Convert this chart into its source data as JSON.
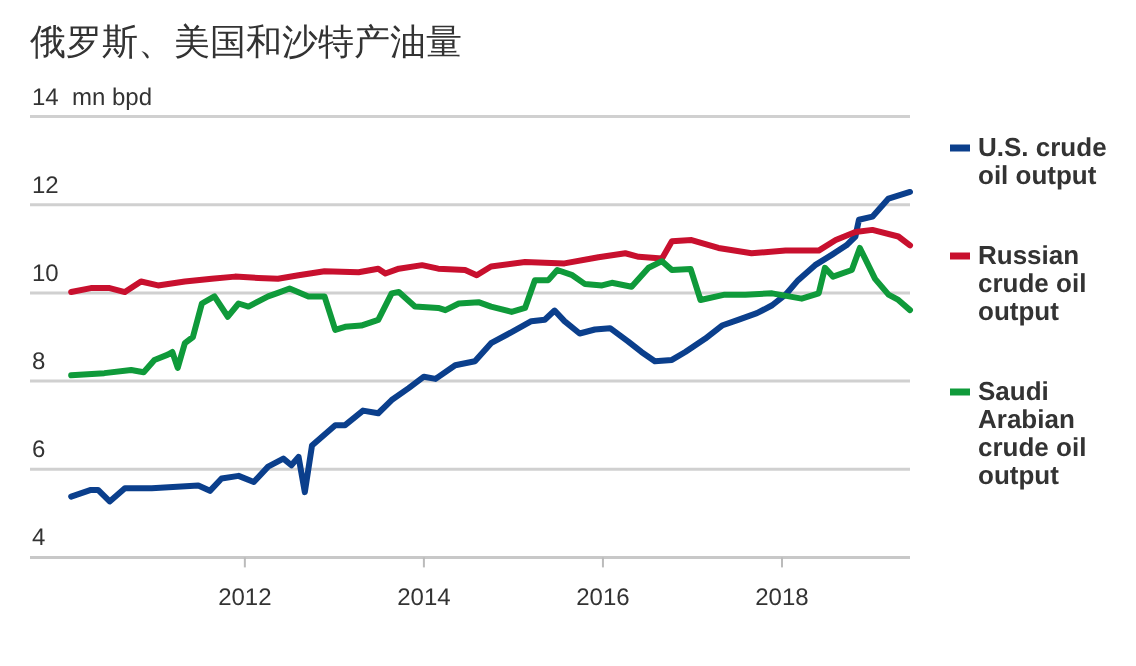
{
  "chart_data": {
    "type": "line",
    "title": "俄罗斯、美国和沙特产油量",
    "ylabel": "mn bpd",
    "xlim": [
      2009.6,
      2019.43
    ],
    "xticks": [
      2012,
      2014,
      2016,
      2018
    ],
    "ylim": [
      4,
      14
    ],
    "yticks": [
      4,
      6,
      8,
      10,
      12,
      14
    ],
    "grid": "y",
    "legend": "right",
    "line_style": "solid",
    "marker": "none",
    "series": [
      {
        "name": "U.S. crude oil output",
        "color": "#0b3f8c",
        "x": [
          2010.06,
          2010.28,
          2010.36,
          2010.49,
          2010.66,
          2010.96,
          2011.48,
          2011.61,
          2011.74,
          2011.93,
          2012.1,
          2012.26,
          2012.43,
          2012.52,
          2012.6,
          2012.67,
          2012.75,
          2013.01,
          2013.12,
          2013.32,
          2013.49,
          2013.64,
          2013.83,
          2014.0,
          2014.13,
          2014.35,
          2014.57,
          2014.75,
          2014.98,
          2015.2,
          2015.35,
          2015.46,
          2015.57,
          2015.74,
          2015.91,
          2016.08,
          2016.28,
          2016.43,
          2016.58,
          2016.77,
          2016.92,
          2017.14,
          2017.33,
          2017.51,
          2017.72,
          2017.89,
          2018.04,
          2018.18,
          2018.37,
          2018.56,
          2018.72,
          2018.82,
          2018.86,
          2019.01,
          2019.19,
          2019.43
        ],
        "values": [
          5.38,
          5.53,
          5.53,
          5.27,
          5.57,
          5.57,
          5.63,
          5.51,
          5.79,
          5.85,
          5.71,
          6.06,
          6.24,
          6.09,
          6.28,
          5.48,
          6.54,
          7.0,
          7.0,
          7.33,
          7.27,
          7.57,
          7.84,
          8.1,
          8.05,
          8.36,
          8.45,
          8.86,
          9.11,
          9.36,
          9.39,
          9.6,
          9.36,
          9.08,
          9.17,
          9.2,
          8.9,
          8.66,
          8.45,
          8.48,
          8.66,
          8.96,
          9.26,
          9.39,
          9.54,
          9.72,
          9.96,
          10.29,
          10.63,
          10.87,
          11.08,
          11.28,
          11.66,
          11.73,
          12.14,
          12.29
        ]
      },
      {
        "name": "Russian crude oil output",
        "color": "#c8102e",
        "x": [
          2010.06,
          2010.28,
          2010.49,
          2010.66,
          2010.84,
          2011.03,
          2011.33,
          2011.63,
          2011.89,
          2012.15,
          2012.37,
          2012.6,
          2012.89,
          2013.27,
          2013.49,
          2013.57,
          2013.72,
          2013.98,
          2014.16,
          2014.46,
          2014.59,
          2014.75,
          2015.13,
          2015.57,
          2015.95,
          2016.25,
          2016.4,
          2016.66,
          2016.77,
          2016.99,
          2017.29,
          2017.66,
          2018.04,
          2018.41,
          2018.6,
          2018.82,
          2019.01,
          2019.3,
          2019.43
        ],
        "values": [
          10.02,
          10.11,
          10.11,
          10.02,
          10.26,
          10.17,
          10.26,
          10.32,
          10.37,
          10.34,
          10.32,
          10.4,
          10.49,
          10.47,
          10.55,
          10.44,
          10.55,
          10.63,
          10.55,
          10.52,
          10.4,
          10.6,
          10.7,
          10.67,
          10.81,
          10.9,
          10.82,
          10.78,
          11.17,
          11.2,
          11.02,
          10.9,
          10.96,
          10.96,
          11.2,
          11.38,
          11.43,
          11.28,
          11.08
        ]
      },
      {
        "name": "Saudi Arabian crude oil output",
        "color": "#0f9a3a",
        "x": [
          2010.06,
          2010.43,
          2010.73,
          2010.87,
          2010.99,
          2011.14,
          2011.19,
          2011.25,
          2011.33,
          2011.42,
          2011.52,
          2011.66,
          2011.81,
          2011.93,
          2012.04,
          2012.26,
          2012.37,
          2012.5,
          2012.71,
          2012.89,
          2013.01,
          2013.12,
          2013.3,
          2013.49,
          2013.64,
          2013.72,
          2013.9,
          2014.16,
          2014.24,
          2014.39,
          2014.61,
          2014.75,
          2014.98,
          2015.13,
          2015.24,
          2015.39,
          2015.49,
          2015.65,
          2015.8,
          2015.99,
          2016.1,
          2016.32,
          2016.51,
          2016.66,
          2016.77,
          2016.98,
          2017.09,
          2017.36,
          2017.59,
          2017.89,
          2018.22,
          2018.41,
          2018.48,
          2018.57,
          2018.78,
          2018.87,
          2019.04,
          2019.19,
          2019.3,
          2019.43
        ],
        "values": [
          8.13,
          8.18,
          8.25,
          8.2,
          8.48,
          8.6,
          8.66,
          8.3,
          8.86,
          9.0,
          9.76,
          9.92,
          9.46,
          9.76,
          9.69,
          9.92,
          10.0,
          10.1,
          9.92,
          9.92,
          9.16,
          9.23,
          9.26,
          9.39,
          9.99,
          10.02,
          9.69,
          9.66,
          9.61,
          9.76,
          9.79,
          9.69,
          9.57,
          9.66,
          10.29,
          10.29,
          10.52,
          10.41,
          10.2,
          10.17,
          10.23,
          10.14,
          10.57,
          10.72,
          10.52,
          10.54,
          9.84,
          9.96,
          9.96,
          9.99,
          9.87,
          9.99,
          10.57,
          10.37,
          10.52,
          11.02,
          10.32,
          9.96,
          9.84,
          9.61
        ]
      }
    ]
  }
}
